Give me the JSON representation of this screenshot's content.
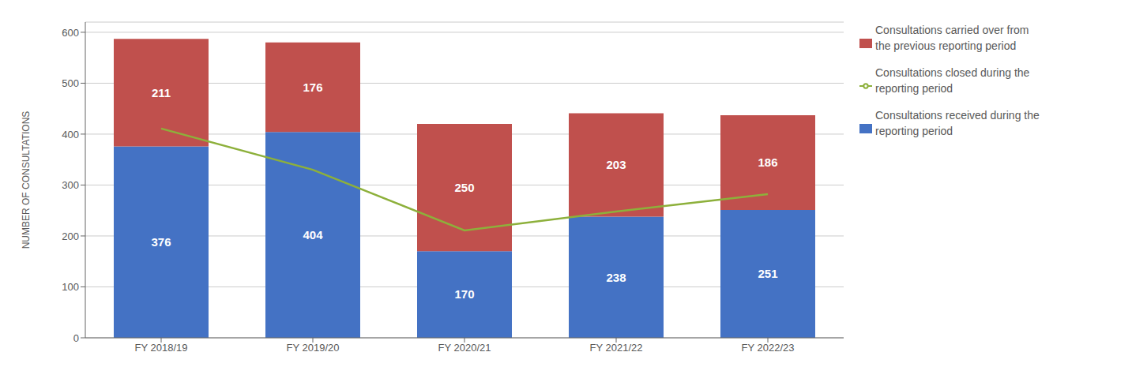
{
  "chart_data": {
    "type": "bar",
    "categories": [
      "FY 2018/19",
      "FY 2019/20",
      "FY 2020/21",
      "FY 2021/22",
      "FY 2022/23"
    ],
    "series": [
      {
        "name": "Consultations received during the\nreporting period",
        "color": "#4472C4",
        "values": [
          376,
          404,
          170,
          238,
          251
        ],
        "data_labels": true
      },
      {
        "name": "Consultations carried over from\nthe previous reporting period",
        "color": "#C0504D",
        "values": [
          211,
          176,
          250,
          203,
          186
        ],
        "data_labels": true
      },
      {
        "name": "Consultations closed during the\nreporting period",
        "type": "line",
        "color": "#8DB03B",
        "marker": "none",
        "values": [
          411,
          330,
          211,
          248,
          282
        ]
      }
    ],
    "stacked": true,
    "ylim": [
      0,
      620
    ],
    "yticks": [
      0,
      100,
      200,
      300,
      400,
      500,
      600
    ],
    "ylabel": "NUMBER OF CONSULTATIONS",
    "grid": true,
    "legend": "right"
  }
}
